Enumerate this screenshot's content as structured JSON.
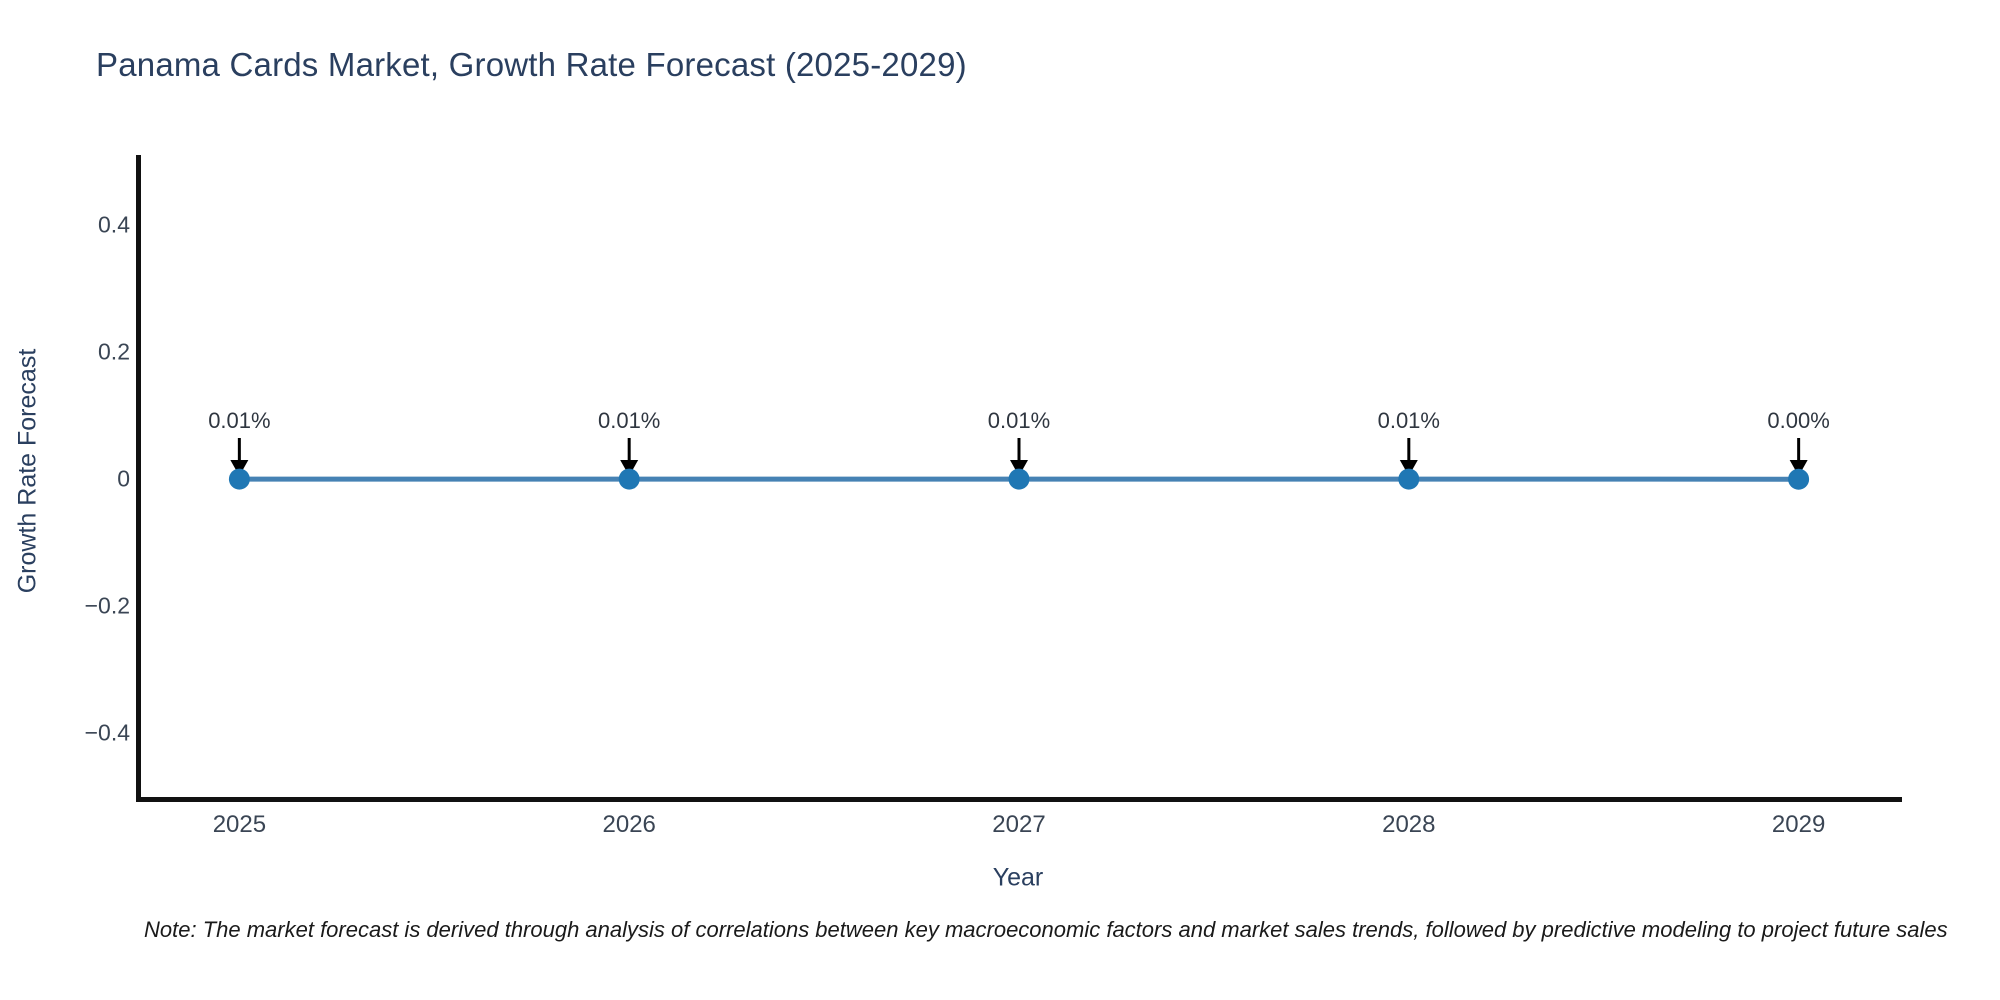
{
  "chart_data": {
    "type": "line",
    "title": "Panama Cards Market, Growth Rate Forecast (2025-2029)",
    "xlabel": "Year",
    "ylabel": "Growth Rate Forecast",
    "x": [
      2025,
      2026,
      2027,
      2028,
      2029
    ],
    "series": [
      {
        "name": "Growth Rate Forecast",
        "values_percent": [
          0.01,
          0.01,
          0.01,
          0.01,
          0.0
        ],
        "plotted_values": [
          0.0001,
          0.0001,
          0.0001,
          0.0001,
          0.0
        ]
      }
    ],
    "point_labels": [
      "0.01%",
      "0.01%",
      "0.01%",
      "0.01%",
      "0.00%"
    ],
    "yticks": {
      "values": [
        0.4,
        0.2,
        0,
        -0.2,
        -0.4
      ],
      "labels": [
        "0.4",
        "0.2",
        "0",
        "−0.2",
        "−0.4"
      ]
    },
    "xticks": {
      "values": [
        2025,
        2026,
        2027,
        2028,
        2029
      ],
      "labels": [
        "2025",
        "2026",
        "2027",
        "2028",
        "2029"
      ]
    },
    "xlim": [
      2024.74,
      2029.26
    ],
    "ylim": [
      -0.5,
      0.51
    ],
    "grid": false,
    "legend": false,
    "annotation_arrows": "down-arrow-to-each-point",
    "colors": {
      "line": "#4682b4",
      "marker": "#1f77b4",
      "arrow": "#000000",
      "title_text": "#2a3f5f",
      "tick_text": "#3a4554",
      "spine": "#111111"
    }
  },
  "note": {
    "text": "Note: The market forecast is derived through analysis of correlations between key macroeconomic factors and market sales trends, followed by predictive modeling to project future sales"
  }
}
